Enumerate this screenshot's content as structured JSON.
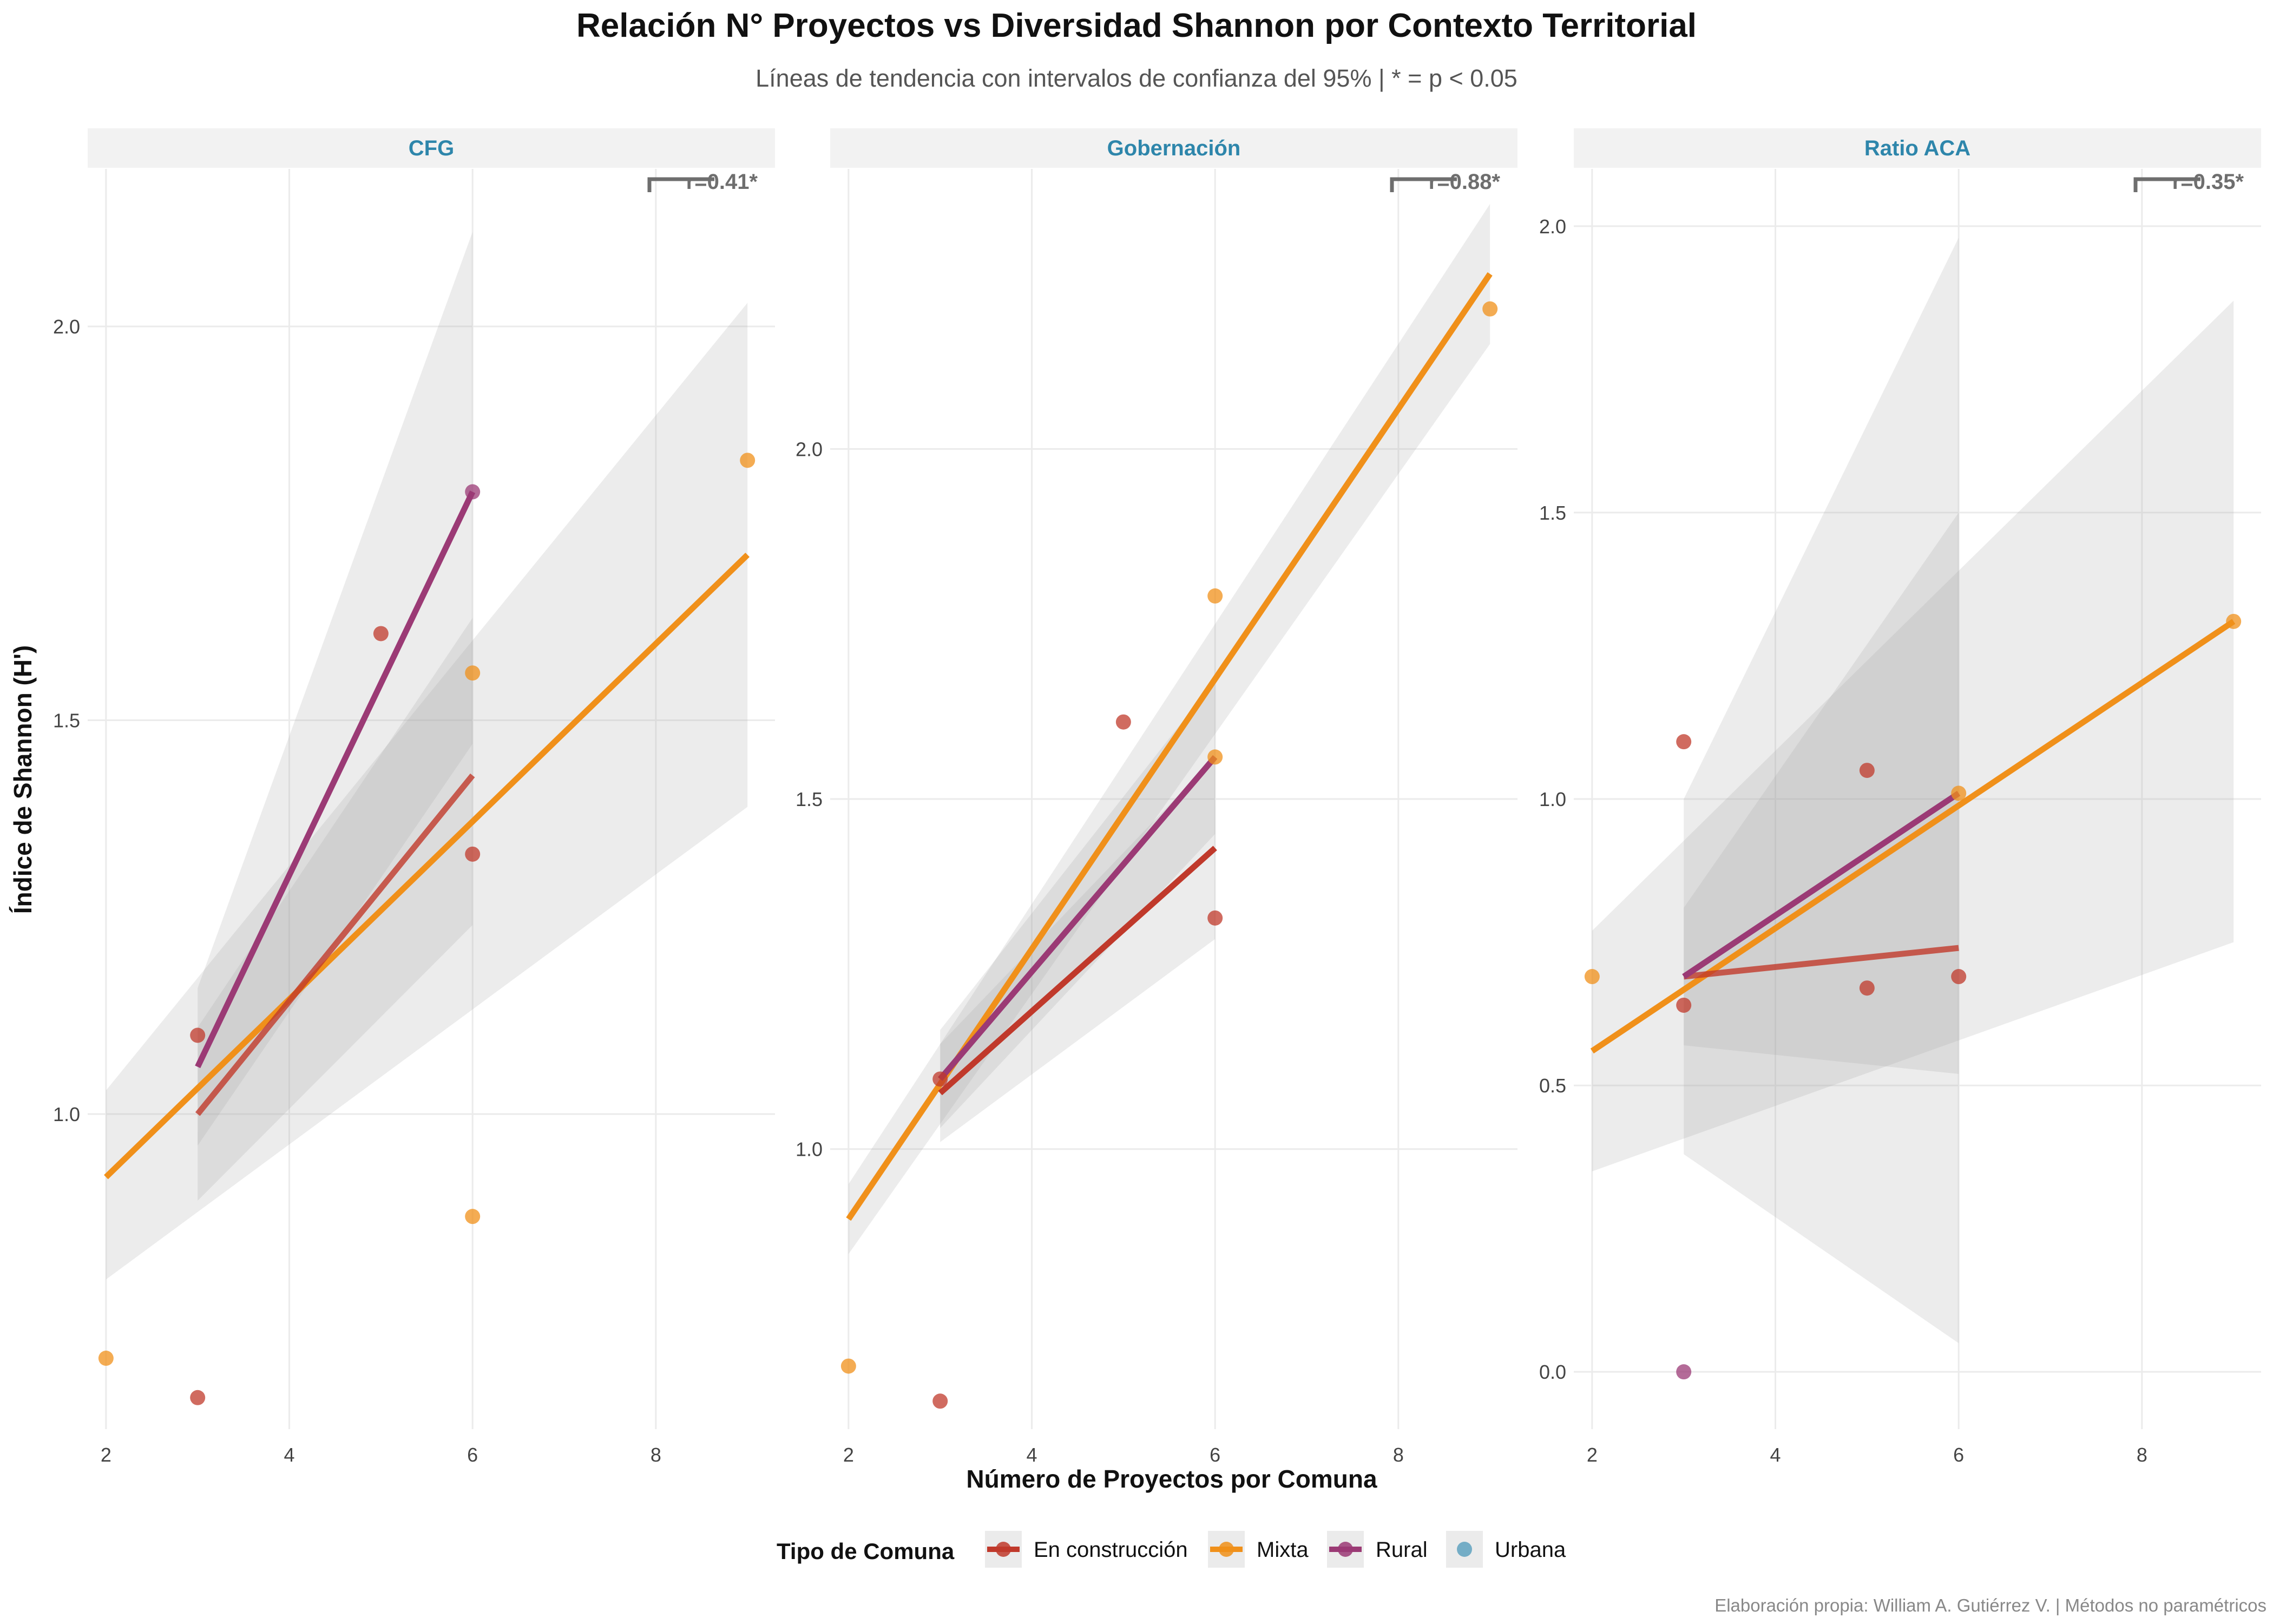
{
  "chart_data": {
    "type": "scatter",
    "title": "Relación N° Proyectos vs Diversidad Shannon por Contexto Territorial",
    "subtitle": "Líneas de tendencia con intervalos de confianza del 95% | * = p < 0.05",
    "xlabel": "Número de Proyectos por Comuna",
    "ylabel": "Índice de Shannon (H')",
    "caption": "Elaboración propia: William A. Gutiérrez V. | Métodos no paramétricos",
    "legend": {
      "title": "Tipo de Comuna",
      "position": "bottom",
      "entries": [
        {
          "label": "En construcción",
          "color": "#c0392b"
        },
        {
          "label": "Mixta",
          "color": "#f0901a"
        },
        {
          "label": "Rural",
          "color": "#9b3a75"
        },
        {
          "label": "Urbana",
          "color": "#5fa2bf"
        }
      ]
    },
    "colors": {
      "En construcción": "#c0392b",
      "Mixta": "#f0901a",
      "Rural": "#9b3a75",
      "Urbana": "#5fa2bf"
    },
    "grid": true,
    "panels": [
      {
        "strip": "CFG",
        "xlim": [
          1.8,
          9.3
        ],
        "ylim": [
          0.6,
          2.2
        ],
        "x_ticks": [
          2,
          4,
          6,
          8
        ],
        "y_ticks": [
          1.0,
          1.5,
          2.0
        ],
        "y_tick_labels": [
          "1.0",
          "1.5",
          "2.0"
        ],
        "annotation": "r=0.41*",
        "points": [
          {
            "series": "Mixta",
            "x": 2,
            "y": 0.69
          },
          {
            "series": "En construcción",
            "x": 3,
            "y": 0.64
          },
          {
            "series": "En construcción",
            "x": 3,
            "y": 1.1
          },
          {
            "series": "En construcción",
            "x": 5,
            "y": 1.61
          },
          {
            "series": "En construcción",
            "x": 6,
            "y": 1.33
          },
          {
            "series": "Rural",
            "x": 6,
            "y": 1.79
          },
          {
            "series": "Mixta",
            "x": 6,
            "y": 1.56
          },
          {
            "series": "Mixta",
            "x": 6,
            "y": 0.87
          },
          {
            "series": "Mixta",
            "x": 9,
            "y": 1.83
          }
        ],
        "trends": [
          {
            "series": "Mixta",
            "x": [
              2,
              9
            ],
            "y": [
              0.92,
              1.71
            ],
            "ci_lower": [
              0.79,
              1.39
            ],
            "ci_upper": [
              1.03,
              2.03
            ]
          },
          {
            "series": "En construcción",
            "x": [
              3,
              6
            ],
            "y": [
              1.0,
              1.43
            ],
            "ci_lower": [
              0.89,
              1.24
            ],
            "ci_upper": [
              1.11,
              1.63
            ]
          },
          {
            "series": "Rural",
            "x": [
              3,
              6
            ],
            "y": [
              1.06,
              1.79
            ],
            "ci_lower": [
              0.96,
              1.47
            ],
            "ci_upper": [
              1.16,
              2.12
            ]
          }
        ]
      },
      {
        "strip": "Gobernación",
        "xlim": [
          1.8,
          9.3
        ],
        "ylim": [
          0.6,
          2.4
        ],
        "x_ticks": [
          2,
          4,
          6,
          8
        ],
        "y_ticks": [
          1.0,
          1.5,
          2.0
        ],
        "y_tick_labels": [
          "1.0",
          "1.5",
          "2.0"
        ],
        "annotation": "r=0.88*",
        "points": [
          {
            "series": "Mixta",
            "x": 2,
            "y": 0.69
          },
          {
            "series": "En construcción",
            "x": 3,
            "y": 0.64
          },
          {
            "series": "En construcción",
            "x": 3,
            "y": 1.1
          },
          {
            "series": "En construcción",
            "x": 5,
            "y": 1.61
          },
          {
            "series": "En construcción",
            "x": 6,
            "y": 1.33
          },
          {
            "series": "Mixta",
            "x": 6,
            "y": 1.79
          },
          {
            "series": "Mixta",
            "x": 6,
            "y": 1.56
          },
          {
            "series": "Mixta",
            "x": 9,
            "y": 2.2
          }
        ],
        "trends": [
          {
            "series": "Mixta",
            "x": [
              2,
              9
            ],
            "y": [
              0.9,
              2.25
            ],
            "ci_lower": [
              0.85,
              2.15
            ],
            "ci_upper": [
              0.95,
              2.35
            ]
          },
          {
            "series": "En construcción",
            "x": [
              3,
              6
            ],
            "y": [
              1.08,
              1.43
            ],
            "ci_lower": [
              1.01,
              1.3
            ],
            "ci_upper": [
              1.15,
              1.56
            ]
          },
          {
            "series": "Rural",
            "x": [
              3,
              6
            ],
            "y": [
              1.1,
              1.56
            ],
            "ci_lower": [
              1.03,
              1.45
            ],
            "ci_upper": [
              1.17,
              1.67
            ]
          }
        ]
      },
      {
        "strip": "Ratio ACA",
        "xlim": [
          1.8,
          9.3
        ],
        "ylim": [
          -0.1,
          2.1
        ],
        "x_ticks": [
          2,
          4,
          6,
          8
        ],
        "y_ticks": [
          0.0,
          0.5,
          1.0,
          1.5,
          2.0
        ],
        "y_tick_labels": [
          "0.0",
          "0.5",
          "1.0",
          "1.5",
          "2.0"
        ],
        "annotation": "r=0.35*",
        "points": [
          {
            "series": "Mixta",
            "x": 2,
            "y": 0.69
          },
          {
            "series": "En construcción",
            "x": 3,
            "y": 1.1
          },
          {
            "series": "En construcción",
            "x": 3,
            "y": 0.64
          },
          {
            "series": "Rural",
            "x": 3,
            "y": 0.0
          },
          {
            "series": "En construcción",
            "x": 5,
            "y": 1.05
          },
          {
            "series": "En construcción",
            "x": 5,
            "y": 0.67
          },
          {
            "series": "Mixta",
            "x": 6,
            "y": 1.01
          },
          {
            "series": "En construcción",
            "x": 6,
            "y": 0.69
          },
          {
            "series": "Mixta",
            "x": 9,
            "y": 1.31
          }
        ],
        "trends": [
          {
            "series": "Mixta",
            "x": [
              2,
              9
            ],
            "y": [
              0.56,
              1.31
            ],
            "ci_lower": [
              0.35,
              0.75
            ],
            "ci_upper": [
              0.77,
              1.87
            ]
          },
          {
            "series": "En construcción",
            "x": [
              3,
              6
            ],
            "y": [
              0.69,
              0.74
            ],
            "ci_lower": [
              0.38,
              0.05
            ],
            "ci_upper": [
              1.0,
              1.98
            ]
          },
          {
            "series": "Rural",
            "x": [
              3,
              6
            ],
            "y": [
              0.69,
              1.01
            ],
            "ci_lower": [
              0.57,
              0.52
            ],
            "ci_upper": [
              0.81,
              1.5
            ]
          }
        ]
      }
    ]
  }
}
